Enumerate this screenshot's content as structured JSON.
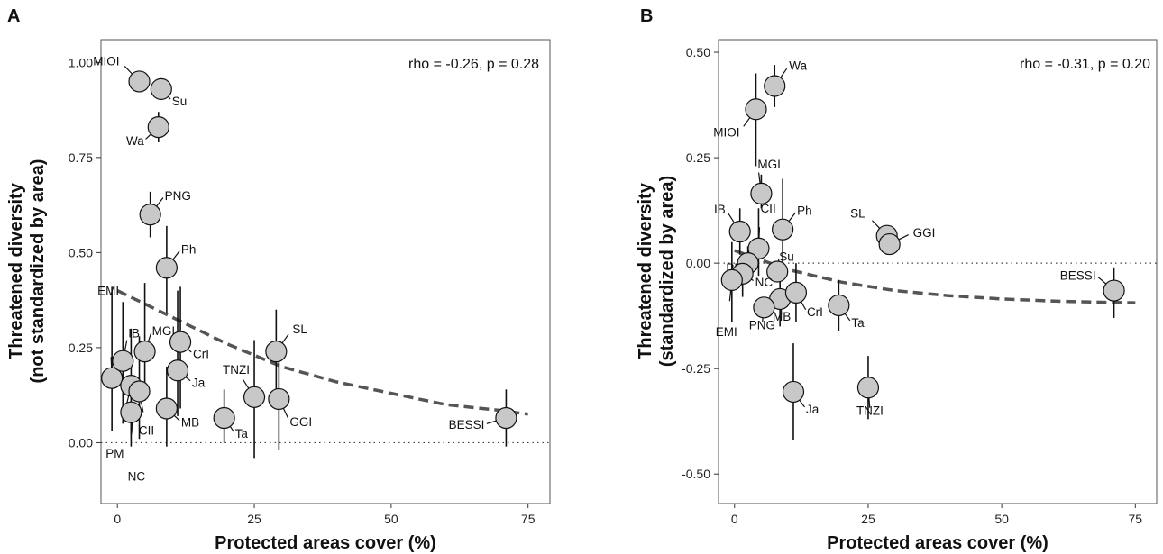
{
  "chart_data": [
    {
      "panel": "A",
      "type": "scatter",
      "annotation": "rho = -0.26, p = 0.28",
      "xlabel": "Protected areas cover (%)",
      "ylabel": [
        "Threatened diversity",
        "(not standardized by area)"
      ],
      "xlim": [
        -3,
        79
      ],
      "ylim": [
        -0.16,
        1.06
      ],
      "xticks": [
        0,
        25,
        50,
        75
      ],
      "yticks": [
        0.0,
        0.25,
        0.5,
        0.75,
        1.0
      ],
      "ytick_labels": [
        "0.00",
        "0.25",
        "0.50",
        "0.75",
        "1.00"
      ],
      "reference_line_y": 0,
      "trend": {
        "style": "dashed",
        "curve": [
          [
            0,
            0.4
          ],
          [
            10,
            0.33
          ],
          [
            20,
            0.26
          ],
          [
            30,
            0.2
          ],
          [
            40,
            0.16
          ],
          [
            50,
            0.13
          ],
          [
            60,
            0.1
          ],
          [
            70,
            0.085
          ],
          [
            75,
            0.075
          ]
        ]
      },
      "grid": false,
      "points": [
        {
          "label": "MIOI",
          "x": 4,
          "y": 0.95,
          "ci": [
            0.93,
            0.97
          ]
        },
        {
          "label": "Su",
          "x": 8,
          "y": 0.93,
          "ci": [
            0.91,
            0.95
          ]
        },
        {
          "label": "Wa",
          "x": 7.5,
          "y": 0.83,
          "ci": [
            0.79,
            0.87
          ]
        },
        {
          "label": "PNG",
          "x": 6,
          "y": 0.6,
          "ci": [
            0.54,
            0.66
          ]
        },
        {
          "label": "Ph",
          "x": 9,
          "y": 0.46,
          "ci": [
            0.34,
            0.57
          ]
        },
        {
          "label": "EMI",
          "x": -1,
          "y": 0.17,
          "ci": [
            0.03,
            0.41
          ]
        },
        {
          "label": "IB",
          "x": 1,
          "y": 0.215,
          "ci": [
            0.05,
            0.37
          ]
        },
        {
          "label": "MGI",
          "x": 5,
          "y": 0.24,
          "ci": [
            0.11,
            0.42
          ]
        },
        {
          "label": "CrI",
          "x": 11.5,
          "y": 0.265,
          "ci": [
            0.09,
            0.41
          ]
        },
        {
          "label": "Ja",
          "x": 11,
          "y": 0.19,
          "ci": [
            0.07,
            0.4
          ]
        },
        {
          "label": "SL",
          "x": 29,
          "y": 0.24,
          "ci": [
            0.11,
            0.35
          ]
        },
        {
          "label": "PM",
          "x": 2.5,
          "y": 0.15,
          "ci": [
            0.02,
            0.3
          ]
        },
        {
          "label": "CII",
          "x": 4,
          "y": 0.135,
          "ci": [
            0.01,
            0.28
          ]
        },
        {
          "label": "NC",
          "x": 2.5,
          "y": 0.08,
          "ci": [
            -0.01,
            0.17
          ]
        },
        {
          "label": "MB",
          "x": 9,
          "y": 0.09,
          "ci": [
            -0.01,
            0.2
          ]
        },
        {
          "label": "Ta",
          "x": 19.5,
          "y": 0.065,
          "ci": [
            0.0,
            0.14
          ]
        },
        {
          "label": "TNZI",
          "x": 25,
          "y": 0.12,
          "ci": [
            -0.04,
            0.27
          ]
        },
        {
          "label": "GGI",
          "x": 29.5,
          "y": 0.115,
          "ci": [
            -0.02,
            0.25
          ]
        },
        {
          "label": "BESSI",
          "x": 71,
          "y": 0.065,
          "ci": [
            -0.01,
            0.14
          ]
        }
      ]
    },
    {
      "panel": "B",
      "type": "scatter",
      "annotation": "rho = -0.31, p = 0.20",
      "xlabel": "Protected areas cover (%)",
      "ylabel": [
        "Threatened diversity",
        "(standardized by area)"
      ],
      "xlim": [
        -3,
        79
      ],
      "ylim": [
        -0.57,
        0.53
      ],
      "xticks": [
        0,
        25,
        50,
        75
      ],
      "yticks": [
        -0.5,
        -0.25,
        0.0,
        0.25,
        0.5
      ],
      "ytick_labels": [
        "-0.50",
        "-0.25",
        "0.00",
        "0.25",
        "0.50"
      ],
      "reference_line_y": 0,
      "trend": {
        "style": "dashed",
        "curve": [
          [
            0,
            0.03
          ],
          [
            10,
            -0.015
          ],
          [
            20,
            -0.045
          ],
          [
            30,
            -0.065
          ],
          [
            40,
            -0.077
          ],
          [
            50,
            -0.085
          ],
          [
            60,
            -0.09
          ],
          [
            70,
            -0.093
          ],
          [
            75,
            -0.094
          ]
        ]
      },
      "grid": false,
      "points": [
        {
          "label": "Wa",
          "x": 7.5,
          "y": 0.42,
          "ci": [
            0.37,
            0.47
          ]
        },
        {
          "label": "MIOI",
          "x": 4,
          "y": 0.365,
          "ci": [
            0.23,
            0.45
          ]
        },
        {
          "label": "MGI",
          "x": 5,
          "y": 0.165,
          "ci": [
            0.13,
            0.21
          ]
        },
        {
          "label": "IB",
          "x": 1,
          "y": 0.075,
          "ci": [
            0.02,
            0.13
          ]
        },
        {
          "label": "CII",
          "x": 4.5,
          "y": 0.035,
          "ci": [
            -0.03,
            0.13
          ]
        },
        {
          "label": "Ph",
          "x": 9,
          "y": 0.08,
          "ci": [
            0.0,
            0.2
          ]
        },
        {
          "label": "SL",
          "x": 28.5,
          "y": 0.065,
          "ci": [
            0.05,
            0.08
          ]
        },
        {
          "label": "GGI",
          "x": 29,
          "y": 0.045,
          "ci": [
            0.04,
            0.05
          ]
        },
        {
          "label": "PM",
          "x": 2.5,
          "y": 0.0,
          "ci": [
            -0.04,
            0.04
          ]
        },
        {
          "label": "Su",
          "x": 8,
          "y": -0.02,
          "ci": [
            -0.02,
            -0.02
          ]
        },
        {
          "label": "NC",
          "x": 1.5,
          "y": -0.025,
          "ci": [
            -0.08,
            0.02
          ]
        },
        {
          "label": "EMI",
          "x": -0.5,
          "y": -0.04,
          "ci": [
            -0.14,
            0.05
          ]
        },
        {
          "label": "MB",
          "x": 8.5,
          "y": -0.085,
          "ci": [
            -0.15,
            -0.01
          ]
        },
        {
          "label": "CrI",
          "x": 11.5,
          "y": -0.07,
          "ci": [
            -0.14,
            0.0
          ]
        },
        {
          "label": "PNG",
          "x": 5.5,
          "y": -0.105,
          "ci": [
            -0.12,
            -0.09
          ]
        },
        {
          "label": "Ta",
          "x": 19.5,
          "y": -0.1,
          "ci": [
            -0.16,
            -0.04
          ]
        },
        {
          "label": "BESSI",
          "x": 71,
          "y": -0.065,
          "ci": [
            -0.13,
            -0.01
          ]
        },
        {
          "label": "Ja",
          "x": 11,
          "y": -0.305,
          "ci": [
            -0.42,
            -0.19
          ]
        },
        {
          "label": "TNZI",
          "x": 25,
          "y": -0.295,
          "ci": [
            -0.37,
            -0.22
          ]
        }
      ]
    }
  ]
}
